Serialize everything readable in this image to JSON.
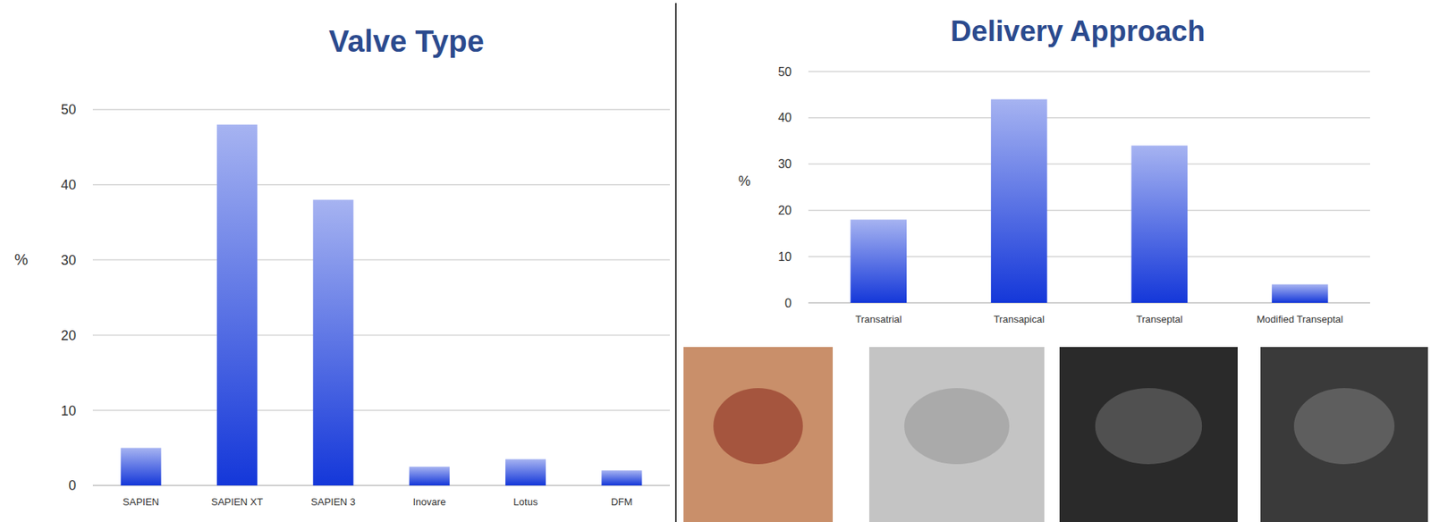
{
  "chart_data": [
    {
      "type": "bar",
      "title": "Valve Type",
      "y_label": "%",
      "categories": [
        "SAPIEN",
        "SAPIEN XT",
        "SAPIEN 3",
        "Inovare",
        "Lotus",
        "DFM"
      ],
      "values": [
        5,
        48,
        38,
        2.5,
        3.5,
        2
      ],
      "color": "#1437d9",
      "ylim": [
        0,
        50
      ],
      "yticks": [
        0,
        10,
        20,
        30,
        40,
        50
      ],
      "grid": true
    },
    {
      "type": "bar",
      "title": "Delivery Approach",
      "y_label": "%",
      "categories": [
        "Transatrial",
        "Transapical",
        "Transeptal",
        "Modified Transeptal"
      ],
      "values": [
        18,
        44,
        34,
        4
      ],
      "color": "#1437d9",
      "ylim": [
        0,
        50
      ],
      "yticks": [
        0,
        10,
        20,
        30,
        40,
        50
      ],
      "grid": true
    }
  ]
}
